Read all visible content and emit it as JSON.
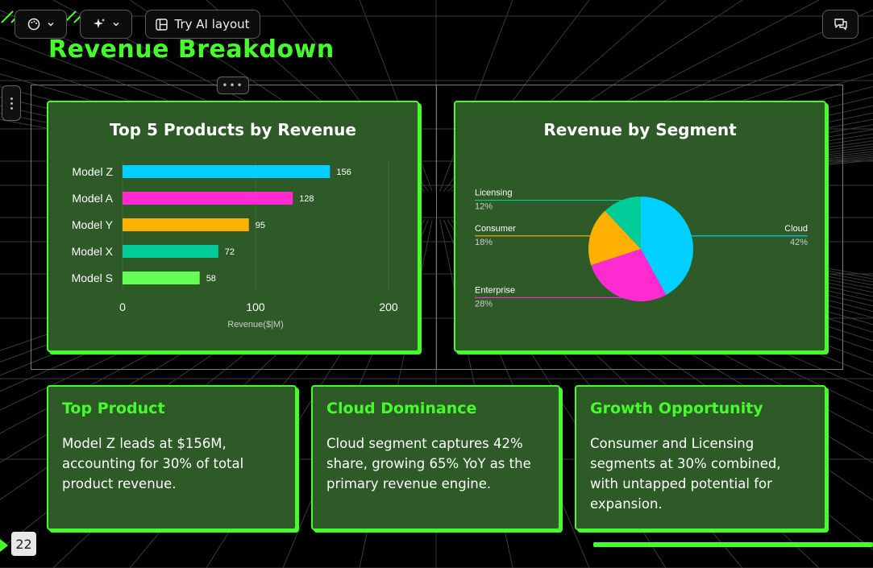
{
  "toolbar": {
    "theme_icon": "palette-icon",
    "ai_icon": "sparkle-icon",
    "ai_layout_label": "Try AI layout",
    "layout_icon": "layout-icon",
    "comments_icon": "comment-icon"
  },
  "slide": {
    "title": "Revenue Breakdown",
    "page_number": "22",
    "accent_color": "#44ff2a",
    "panel_color": "#2d5a27"
  },
  "cards": [
    {
      "title": "Top Product",
      "body": "Model Z leads at $156M, accounting for 30% of total product revenue."
    },
    {
      "title": "Cloud Dominance",
      "body": "Cloud segment captures 42% share, growing 65% YoY as the primary revenue engine."
    },
    {
      "title": "Growth Opportunity",
      "body": "Consumer and Licensing segments at 30% combined, with untapped potential for expansion."
    }
  ],
  "chart_data": [
    {
      "type": "bar",
      "orientation": "horizontal",
      "title": "Top 5 Products by Revenue",
      "categories": [
        "Model Z",
        "Model A",
        "Model Y",
        "Model X",
        "Model S"
      ],
      "values": [
        156,
        128,
        95,
        72,
        58
      ],
      "colors": [
        "#00d0ff",
        "#ff2ad0",
        "#ffb000",
        "#00cc99",
        "#66ff55"
      ],
      "xlabel": "Revenue($|M)",
      "xlim": [
        0,
        200
      ],
      "xticks": [
        0,
        100,
        200
      ],
      "grid": true
    },
    {
      "type": "pie",
      "title": "Revenue by Segment",
      "slices": [
        {
          "label": "Cloud",
          "value": 42,
          "pct_label": "42%",
          "color": "#00d0ff"
        },
        {
          "label": "Enterprise",
          "value": 28,
          "pct_label": "28%",
          "color": "#ff2ad0"
        },
        {
          "label": "Consumer",
          "value": 18,
          "pct_label": "18%",
          "color": "#ffb000"
        },
        {
          "label": "Licensing",
          "value": 12,
          "pct_label": "12%",
          "color": "#00cc99"
        }
      ]
    }
  ]
}
